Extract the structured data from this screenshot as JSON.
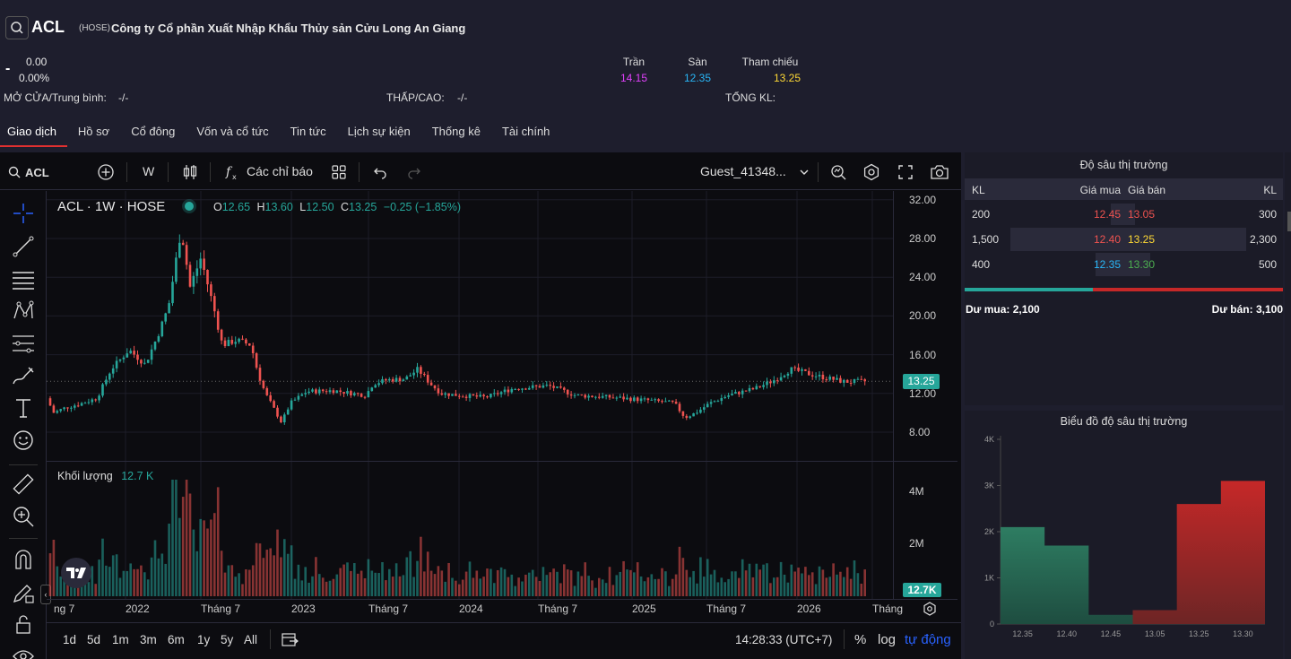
{
  "header": {
    "symbol": "ACL",
    "exchange": "(HOSE)",
    "company_name": "Công ty Cổ phần Xuất Nhập Khẩu Thủy sản Cửu Long An Giang",
    "price_dash": "-",
    "change": "0.00",
    "change_pct": "0.00%",
    "ref_prices": [
      {
        "label": "Trần",
        "value": "14.15",
        "color": "#e040fb"
      },
      {
        "label": "Sàn",
        "value": "12.35",
        "color": "#29b6f6"
      },
      {
        "label": "Tham chiếu",
        "value": "13.25",
        "color": "#fdd835"
      }
    ],
    "open_avg_label": "MỞ CỬA/Trung bình:",
    "open_avg_value": "-/-",
    "low_high_label": "THẤP/CAO:",
    "low_high_value": "-/-",
    "total_vol_label": "TỔNG KL:"
  },
  "tabs": [
    "Giao dịch",
    "Hồ sơ",
    "Cổ đông",
    "Vốn và cổ tức",
    "Tin tức",
    "Lịch sự kiện",
    "Thống kê",
    "Tài chính"
  ],
  "toolbar": {
    "symbol": "ACL",
    "interval": "W",
    "indicators": "Các chỉ báo",
    "user": "Guest_41348..."
  },
  "legend": {
    "title": "ACL · 1W · HOSE",
    "o_label": "O",
    "o": "12.65",
    "h_label": "H",
    "h": "13.60",
    "l_label": "L",
    "l": "12.50",
    "c_label": "C",
    "c": "13.25",
    "chg": "−0.25 (−1.85%)"
  },
  "volume": {
    "label": "Khối lượng",
    "value": "12.7 K",
    "last_badge": "12.7K"
  },
  "price_badge": "13.25",
  "price_ticks": [
    "32.00",
    "28.00",
    "24.00",
    "20.00",
    "16.00",
    "12.00",
    "8.00"
  ],
  "vol_ticks": [
    "4M",
    "2M"
  ],
  "time_labels": [
    "ng 7",
    "2022",
    "Tháng 7",
    "2023",
    "Tháng 7",
    "2024",
    "Tháng 7",
    "2025",
    "Tháng 7",
    "2026",
    "Tháng"
  ],
  "ranges": [
    "1d",
    "5d",
    "1m",
    "3m",
    "6m",
    "1y",
    "5y",
    "All"
  ],
  "clock": "14:28:33 (UTC+7)",
  "scale_opts": [
    "%",
    "log",
    "tự động"
  ],
  "colors": {
    "up": "#26a69a",
    "down": "#ef5350",
    "accent": "#2962ff"
  },
  "depth": {
    "title": "Độ sâu thị trường",
    "headers": [
      "KL",
      "Giá mua",
      "Giá bán",
      "KL"
    ],
    "rows": [
      {
        "bid_vol": "200",
        "bid": "12.45",
        "ask": "13.05",
        "ask_vol": "300",
        "bid_color": "#ef5350",
        "ask_color": "#ef5350"
      },
      {
        "bid_vol": "1,500",
        "bid": "12.40",
        "ask": "13.25",
        "ask_vol": "2,300",
        "bid_color": "#ef5350",
        "ask_color": "#fdd835"
      },
      {
        "bid_vol": "400",
        "bid": "12.35",
        "ask": "13.30",
        "ask_vol": "500",
        "bid_color": "#29b6f6",
        "ask_color": "#4caf50"
      }
    ],
    "bid_total_label": "Dư mua:",
    "bid_total": "2,100",
    "ask_total_label": "Dư bán:",
    "ask_total": "3,100",
    "bid_ratio": 0.404
  },
  "chart_data": {
    "type": "area",
    "title": "Biểu đồ độ sâu thị trường",
    "categories": [
      "12.35",
      "12.40",
      "12.45",
      "13.05",
      "13.25",
      "13.30"
    ],
    "series": [
      {
        "values": [
          2100,
          1700,
          200,
          null,
          null,
          null
        ]
      },
      {
        "values": [
          null,
          null,
          null,
          300,
          2600,
          3100
        ]
      }
    ],
    "yticks": [
      "4K",
      "3K",
      "2K",
      "1K",
      "0"
    ],
    "ylim": [
      0,
      4000
    ]
  }
}
